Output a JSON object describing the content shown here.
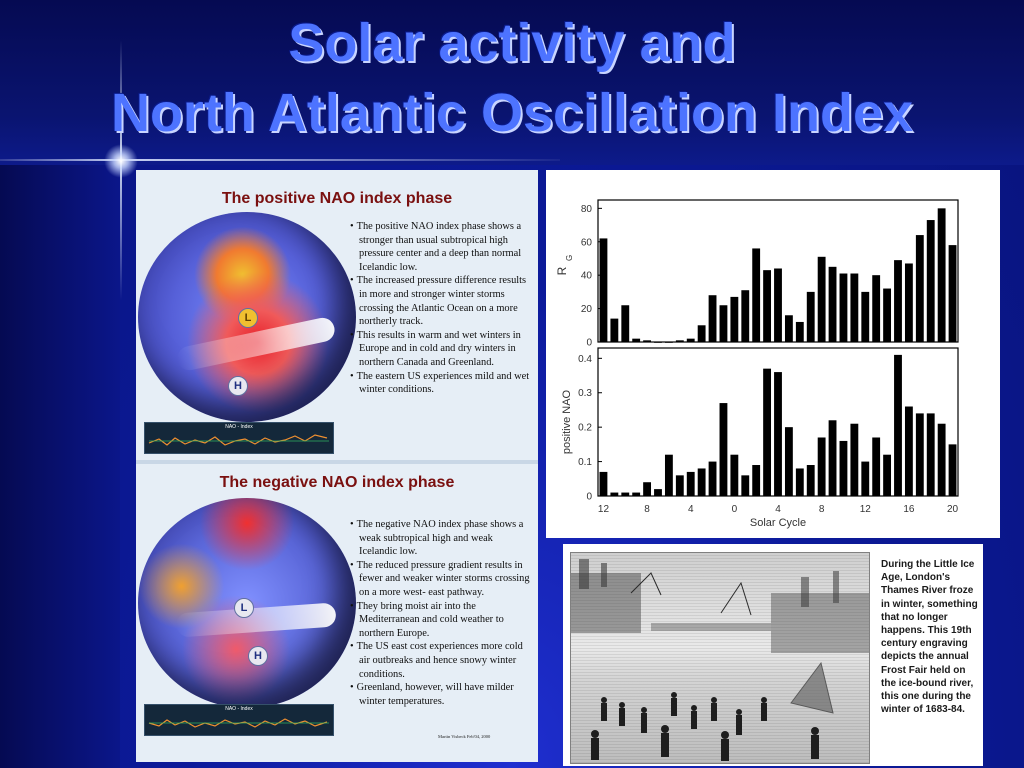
{
  "slide": {
    "title_line1": "Solar activity and",
    "title_line2": "North Atlantic Oscillation Index",
    "colors": {
      "title": "#4d73ff",
      "background": "#0c1a9a",
      "phase_title": "#7a1010"
    }
  },
  "positive_phase": {
    "title": "The positive NAO index phase",
    "strip_label": "NAO - Index",
    "bullets": [
      "The positive NAO index phase shows a stronger than usual subtropical high pressure center and a deep than normal Icelandic low.",
      "The increased pressure difference results in more and stronger winter storms crossing the Atlantic Ocean on a more northerly track.",
      "This results in warm and wet winters in Europe and in cold and dry winters in northern Canada and Greenland.",
      "The eastern US experiences mild and wet winter conditions."
    ],
    "marker_high": "H",
    "marker_low": "L"
  },
  "negative_phase": {
    "title": "The negative NAO index phase",
    "strip_label": "NAO - Index",
    "bullets": [
      "The negative NAO index phase shows a weak subtropical high and weak Icelandic low.",
      "The reduced pressure gradient results in fewer and weaker winter storms crossing on a more west- east pathway.",
      "They bring moist air into the Mediterranean and cold weather to northern Europe.",
      "The US east cost experiences more cold air outbreaks and hence snowy winter conditions.",
      "Greenland, however, will have milder winter temperatures."
    ],
    "credit": "Martin Visbeck Feb'04, 2000",
    "marker_high": "H",
    "marker_low": "L"
  },
  "chart_data": [
    {
      "type": "bar",
      "ylabel": "R",
      "ylabel_sub": "G",
      "ylim": [
        0,
        85
      ],
      "yticks": [
        0,
        20,
        40,
        60,
        80
      ],
      "grid": false,
      "x": [
        12,
        13,
        14,
        15,
        16,
        17,
        18,
        19,
        20,
        21,
        22,
        23,
        24,
        25,
        26,
        27,
        28,
        29,
        30,
        31,
        32,
        33,
        34,
        35,
        36,
        37,
        38,
        39,
        40,
        41,
        42,
        43,
        44
      ],
      "values": [
        62,
        14,
        22,
        2,
        1,
        0,
        0,
        1,
        2,
        10,
        28,
        22,
        27,
        31,
        56,
        43,
        44,
        16,
        12,
        30,
        51,
        45,
        41,
        41,
        30,
        40,
        32,
        49,
        47,
        64,
        73,
        80,
        58
      ]
    },
    {
      "type": "bar",
      "ylabel": "positive NAO",
      "xlabel": "Solar Cycle",
      "ylim": [
        0,
        0.43
      ],
      "yticks": [
        0,
        0.1,
        0.2,
        0.3,
        0.4
      ],
      "ytick_labels": [
        "0",
        "0.1",
        "0.2",
        "0.3",
        "0.4"
      ],
      "xtick_labels": [
        "12",
        "8",
        "4",
        "0",
        "4",
        "8",
        "12",
        "16",
        "20"
      ],
      "grid": false,
      "x": [
        12,
        13,
        14,
        15,
        16,
        17,
        18,
        19,
        20,
        21,
        22,
        23,
        24,
        25,
        26,
        27,
        28,
        29,
        30,
        31,
        32,
        33,
        34,
        35,
        36,
        37,
        38,
        39,
        40,
        41,
        42,
        43,
        44
      ],
      "values": [
        0.07,
        0.01,
        0.01,
        0.01,
        0.04,
        0.02,
        0.12,
        0.06,
        0.07,
        0.08,
        0.1,
        0.27,
        0.12,
        0.06,
        0.09,
        0.37,
        0.36,
        0.2,
        0.08,
        0.09,
        0.17,
        0.22,
        0.16,
        0.21,
        0.1,
        0.17,
        0.12,
        0.41,
        0.26,
        0.24,
        0.24,
        0.21,
        0.15
      ]
    }
  ],
  "thames": {
    "caption": "During the Little Ice Age, London's Thames River froze in winter, something that no longer happens. This 19th century engraving depicts the annual Frost Fair held on the ice-bound river, this one during the winter of 1683-84."
  }
}
